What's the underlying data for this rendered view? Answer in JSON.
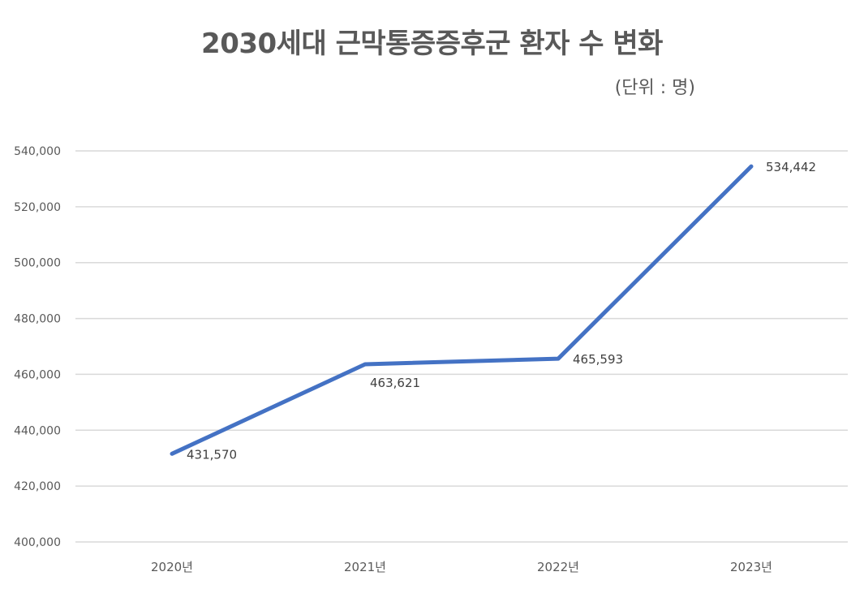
{
  "chart_data": {
    "type": "line",
    "title": "2030세대 근막통증증후군 환자 수 변화",
    "subtitle": "(단위 : 명)",
    "xlabel": "",
    "ylabel": "",
    "categories": [
      "2020년",
      "2021년",
      "2022년",
      "2023년"
    ],
    "series": [
      {
        "name": "환자 수",
        "values": [
          431570,
          463621,
          465593,
          534442
        ],
        "color": "#4472C4"
      }
    ],
    "data_labels": [
      "431,570",
      "463,621",
      "465,593",
      "534,442"
    ],
    "ylim": [
      400000,
      540000
    ],
    "yticks": [
      400000,
      420000,
      440000,
      460000,
      480000,
      500000,
      520000,
      540000
    ],
    "ytick_labels": [
      "400,000",
      "420,000",
      "440,000",
      "460,000",
      "480,000",
      "500,000",
      "520,000",
      "540,000"
    ],
    "grid": true,
    "legend": "none"
  },
  "colors": {
    "line": "#4472C4",
    "grid": "#D9D9D9",
    "text": "#595959"
  }
}
